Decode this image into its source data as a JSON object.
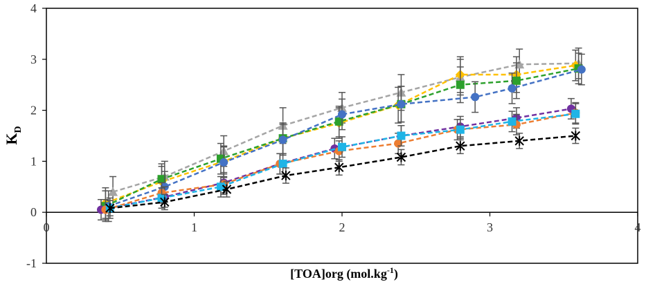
{
  "chart_data": {
    "type": "line",
    "title": "",
    "xlabel_main": "[TOA]org (mol.kg",
    "xlabel_sup": "-1",
    "xlabel_tail": ")",
    "ylabel_main": "K",
    "ylabel_sub": "D",
    "xlim": [
      0,
      4
    ],
    "ylim": [
      -1,
      4
    ],
    "x_ticks": [
      "0",
      "1",
      "2",
      "3",
      "4"
    ],
    "y_ticks": [
      "-1",
      "0",
      "1",
      "2",
      "3",
      "4"
    ],
    "grid": false,
    "legend": "none",
    "series": [
      {
        "color": "#a5a5a5",
        "marker": "triangle",
        "x": [
          0.45,
          0.8,
          1.2,
          1.6,
          2.0,
          2.4,
          2.8,
          3.2,
          3.6
        ],
        "y": [
          0.4,
          0.7,
          1.2,
          1.7,
          2.05,
          2.35,
          2.65,
          2.9,
          2.92
        ],
        "err": [
          0.3,
          0.3,
          0.3,
          0.35,
          0.3,
          0.35,
          0.35,
          0.3,
          0.3
        ]
      },
      {
        "color": "#ffc000",
        "marker": "diamond",
        "x": [
          0.4,
          0.78,
          1.2,
          1.6,
          1.98,
          2.38,
          2.8,
          3.18,
          3.58
        ],
        "y": [
          0.18,
          0.6,
          1.0,
          1.45,
          1.75,
          2.1,
          2.7,
          2.7,
          2.88
        ],
        "err": [
          0.3,
          0.3,
          0.3,
          0.3,
          0.3,
          0.35,
          0.35,
          0.35,
          0.3
        ]
      },
      {
        "color": "#2ca02c",
        "marker": "square",
        "x": [
          0.4,
          0.78,
          1.18,
          1.6,
          1.98,
          2.4,
          2.8,
          3.18,
          3.6
        ],
        "y": [
          0.12,
          0.65,
          1.05,
          1.45,
          1.78,
          2.12,
          2.5,
          2.58,
          2.82
        ],
        "err": [
          0.3,
          0.3,
          0.3,
          0.3,
          0.3,
          0.35,
          0.35,
          0.35,
          0.3
        ]
      },
      {
        "color": "#4472c4",
        "marker": "circle",
        "x": [
          0.42,
          0.8,
          1.2,
          1.6,
          2.0,
          2.4,
          2.9,
          3.15,
          3.62
        ],
        "y": [
          0.12,
          0.5,
          0.98,
          1.42,
          1.92,
          2.12,
          2.26,
          2.43,
          2.8
        ],
        "err": [
          0.3,
          0.3,
          0.3,
          0.3,
          0.3,
          0.35,
          0.3,
          0.3,
          0.3
        ]
      },
      {
        "color": "#7030a0",
        "marker": "circle",
        "x": [
          0.37,
          0.8,
          1.2,
          1.58,
          1.95,
          2.4,
          2.8,
          3.18,
          3.55
        ],
        "y": [
          0.05,
          0.3,
          0.58,
          0.95,
          1.25,
          1.5,
          1.68,
          1.85,
          2.03
        ],
        "err": [
          0.2,
          0.2,
          0.2,
          0.2,
          0.2,
          0.2,
          0.2,
          0.2,
          0.2
        ]
      },
      {
        "color": "#ed7d31",
        "marker": "circle",
        "x": [
          0.4,
          0.78,
          1.2,
          1.58,
          1.98,
          2.38,
          2.78,
          3.18,
          3.58
        ],
        "y": [
          0.05,
          0.38,
          0.55,
          0.95,
          1.2,
          1.35,
          1.62,
          1.72,
          1.95
        ],
        "err": [
          0.2,
          0.2,
          0.2,
          0.2,
          0.2,
          0.2,
          0.2,
          0.2,
          0.2
        ]
      },
      {
        "color": "#1fb4e6",
        "marker": "square",
        "x": [
          0.43,
          0.78,
          1.18,
          1.6,
          2.0,
          2.4,
          2.8,
          3.15,
          3.58
        ],
        "y": [
          0.08,
          0.28,
          0.5,
          0.95,
          1.28,
          1.5,
          1.62,
          1.78,
          1.93
        ],
        "err": [
          0.2,
          0.2,
          0.2,
          0.2,
          0.2,
          0.2,
          0.2,
          0.2,
          0.2
        ]
      },
      {
        "color": "#000000",
        "marker": "star",
        "x": [
          0.43,
          0.8,
          1.22,
          1.62,
          1.98,
          2.4,
          2.8,
          3.2,
          3.58
        ],
        "y": [
          0.08,
          0.2,
          0.45,
          0.72,
          0.88,
          1.08,
          1.3,
          1.4,
          1.5
        ],
        "err": [
          0.15,
          0.15,
          0.15,
          0.15,
          0.15,
          0.15,
          0.15,
          0.15,
          0.15
        ]
      }
    ]
  }
}
